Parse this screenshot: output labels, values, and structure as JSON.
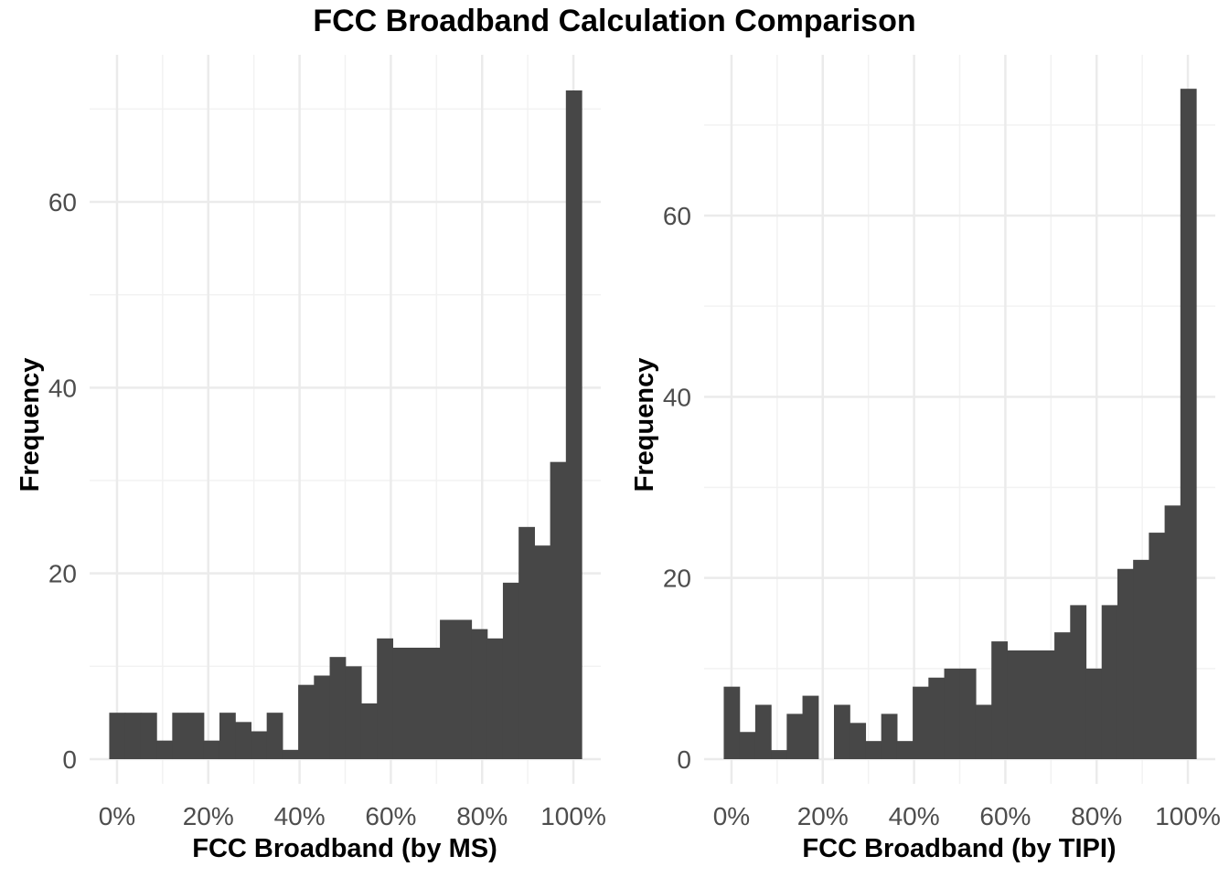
{
  "title": "FCC Broadband Calculation Comparison",
  "chart_data": [
    {
      "type": "bar",
      "subtype": "histogram",
      "xlabel": "FCC Broadband (by MS)",
      "ylabel": "Frequency",
      "x_tick_labels": [
        "0%",
        "20%",
        "40%",
        "60%",
        "80%",
        "100%"
      ],
      "y_tick_labels": [
        "0",
        "20",
        "40",
        "60"
      ],
      "xlim": [
        -0.06,
        1.06
      ],
      "ylim": [
        -3.6,
        75.6
      ],
      "bin_width": 0.0345,
      "bin_start": -0.017,
      "values": [
        5,
        5,
        5,
        2,
        5,
        5,
        2,
        5,
        4,
        3,
        5,
        1,
        8,
        9,
        11,
        10,
        6,
        13,
        12,
        12,
        12,
        15,
        15,
        14,
        13,
        19,
        25,
        23,
        32,
        72
      ],
      "bar_color": "#474747",
      "grid": true
    },
    {
      "type": "bar",
      "subtype": "histogram",
      "xlabel": "FCC Broadband (by TIPI)",
      "ylabel": "Frequency",
      "x_tick_labels": [
        "0%",
        "20%",
        "40%",
        "60%",
        "80%",
        "100%"
      ],
      "y_tick_labels": [
        "0",
        "20",
        "40",
        "60"
      ],
      "xlim": [
        -0.06,
        1.06
      ],
      "ylim": [
        -3.6,
        75.6
      ],
      "bin_width": 0.0345,
      "bin_start": -0.017,
      "values": [
        8,
        3,
        6,
        1,
        5,
        7,
        0,
        6,
        4,
        2,
        5,
        2,
        8,
        9,
        10,
        10,
        6,
        13,
        12,
        12,
        12,
        14,
        17,
        10,
        17,
        21,
        22,
        25,
        28,
        74
      ],
      "bar_color": "#474747",
      "grid": true
    }
  ]
}
